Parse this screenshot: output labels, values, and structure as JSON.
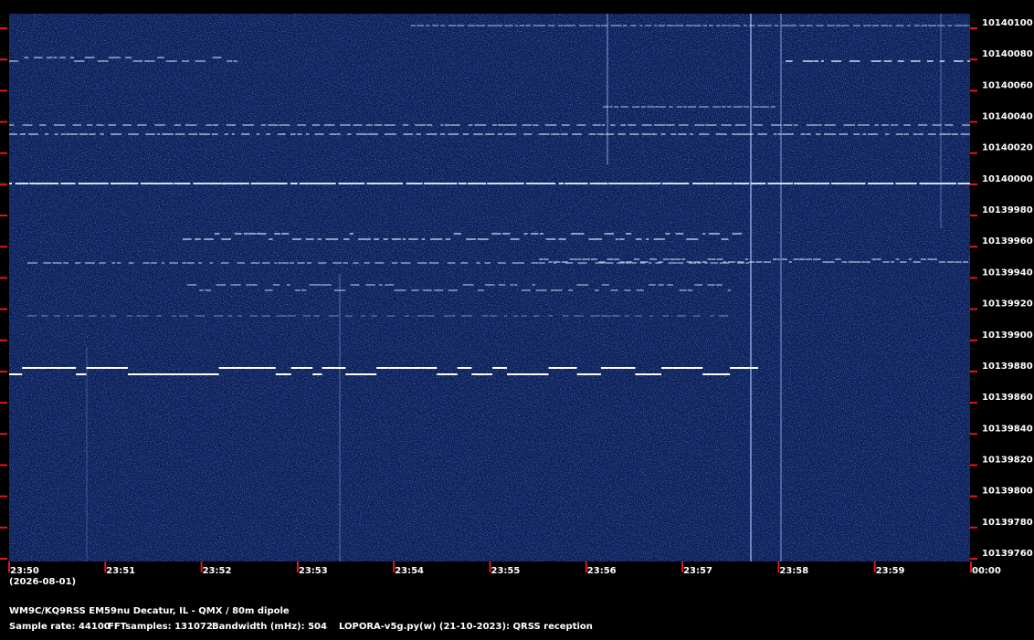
{
  "y_axis": {
    "labels": [
      "10140100",
      "10140080",
      "10140060",
      "10140040",
      "10140020",
      "10140000",
      "10139980",
      "10139960",
      "10139940",
      "10139920",
      "10139900",
      "10139880",
      "10139860",
      "10139840",
      "10139820",
      "10139800",
      "10139780",
      "10139760"
    ]
  },
  "x_axis": {
    "labels": [
      "23:50",
      "23:51",
      "23:52",
      "23:53",
      "23:54",
      "23:55",
      "23:56",
      "23:57",
      "23:58",
      "23:59",
      "00:00"
    ],
    "date": "(2026-08-01)"
  },
  "footer": {
    "station": "WM9C/KQ9RSS EM59nu Decatur, IL - QMX / 80m dipole",
    "sample_rate": "Sample rate: 44100",
    "fft_samples": "FFTsamples: 131072",
    "bandwidth": "Bandwidth (mHz): 504",
    "software": "LOPORA-v5g.py(w) (21-10-2023): QRSS reception"
  }
}
